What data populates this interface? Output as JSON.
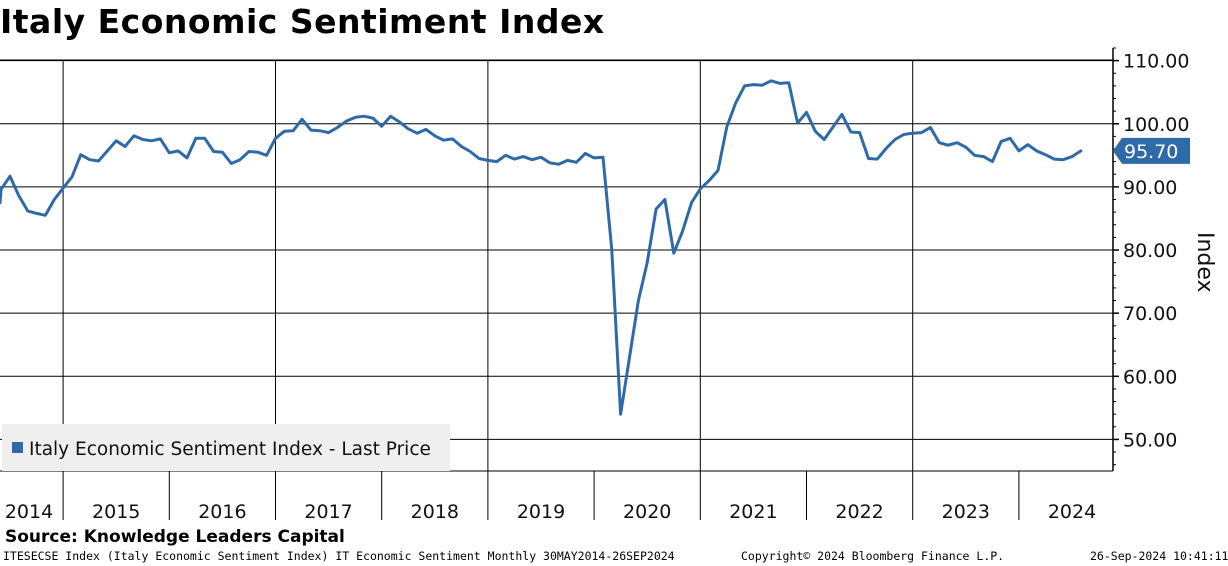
{
  "title": "Italy Economic Sentiment Index",
  "source": "Source: Knowledge Leaders Capital",
  "footer": {
    "left": "ITESECSE Index (Italy Economic Sentiment Index) IT Economic Sentiment  Monthly 30MAY2014-26SEP2024",
    "center": "Copyright© 2024 Bloomberg Finance L.P.",
    "right": "26-Sep-2024 10:41:11"
  },
  "chart_data": {
    "type": "line",
    "ylabel": "Index",
    "ylim": [
      45,
      112
    ],
    "y_ticks": [
      "50.00",
      "60.00",
      "70.00",
      "80.00",
      "90.00",
      "100.00",
      "110.00"
    ],
    "x_tick_labels": [
      "2014",
      "2015",
      "2016",
      "2017",
      "2018",
      "2019",
      "2020",
      "2021",
      "2022",
      "2023",
      "2024"
    ],
    "x_start": "2014-05",
    "legend": "Italy Economic Sentiment Index - Last Price",
    "last_value_label": "95.70",
    "line_color": "#2e6aa8",
    "series": [
      {
        "values": [
          87.5,
          89.6,
          91.7,
          88.6,
          86.2,
          85.8,
          85.5,
          88.0,
          89.8,
          91.6,
          95.1,
          94.3,
          94.1,
          95.7,
          97.3,
          96.4,
          98.1,
          97.5,
          97.3,
          97.6,
          95.4,
          95.7,
          94.6,
          97.7,
          97.7,
          95.6,
          95.5,
          93.7,
          94.3,
          95.6,
          95.5,
          95.0,
          97.7,
          98.8,
          98.9,
          100.7,
          99.0,
          98.9,
          98.6,
          99.4,
          100.4,
          101.0,
          101.2,
          100.9,
          99.6,
          101.2,
          100.3,
          99.2,
          98.5,
          99.1,
          98.1,
          97.4,
          97.6,
          96.4,
          95.6,
          94.5,
          94.2,
          94.0,
          95.0,
          94.4,
          94.8,
          94.3,
          94.7,
          93.8,
          93.6,
          94.2,
          93.9,
          95.3,
          94.6,
          94.7,
          80.0,
          54.0,
          63.0,
          72.0,
          78.0,
          86.5,
          88.0,
          79.5,
          83.0,
          87.5,
          89.7,
          91.0,
          92.6,
          99.5,
          103.3,
          106.0,
          106.2,
          106.1,
          106.8,
          106.4,
          106.5,
          100.1,
          101.8,
          98.8,
          97.5,
          99.5,
          101.5,
          98.7,
          98.6,
          94.5,
          94.4,
          96.1,
          97.5,
          98.3,
          98.5,
          98.6,
          99.4,
          97.0,
          96.6,
          97.0,
          96.3,
          95.0,
          94.8,
          94.0,
          97.2,
          97.7,
          95.7,
          96.7,
          95.7,
          95.1,
          94.4,
          94.3,
          94.8,
          95.7
        ]
      }
    ]
  }
}
